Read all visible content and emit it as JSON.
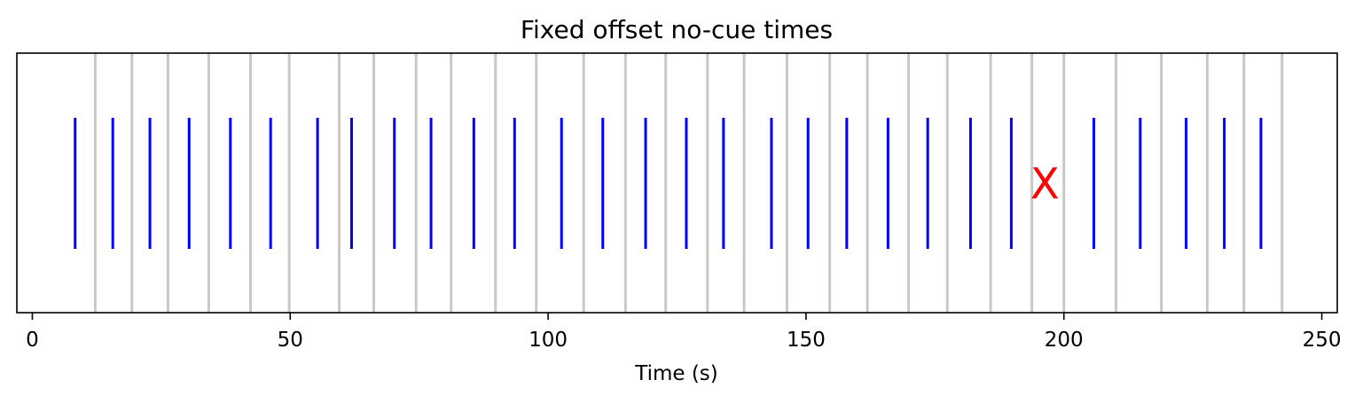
{
  "chart_data": {
    "type": "event-raster",
    "title": "Fixed offset no-cue times",
    "xlabel": "Time (s)",
    "ylabel": "",
    "xlim": [
      -3,
      253
    ],
    "y_axis_visible": false,
    "xticks": [
      0,
      50,
      100,
      150,
      200,
      250
    ],
    "tick_labels": [
      "0",
      "50",
      "100",
      "150",
      "200",
      "250"
    ],
    "colors": {
      "event_line": "#0000ff",
      "reference_line": "#c8c8c8",
      "marker": "#ff0000"
    },
    "series": [
      {
        "role": "reference",
        "x": [
          12.2,
          19.3,
          26.3,
          34.2,
          42.3,
          49.8,
          59.5,
          66.2,
          74.4,
          81.2,
          89.8,
          97.7,
          106.9,
          115.0,
          122.8,
          130.9,
          138.0,
          146.3,
          154.6,
          161.9,
          169.9,
          177.4,
          185.8,
          193.8,
          200.0,
          210.1,
          218.9,
          227.8,
          234.9,
          242.3
        ]
      },
      {
        "role": "event",
        "x": [
          8.3,
          15.6,
          22.8,
          30.4,
          38.4,
          46.2,
          55.3,
          61.9,
          70.2,
          77.3,
          85.6,
          93.5,
          102.6,
          110.6,
          118.9,
          126.8,
          134.0,
          143.3,
          150.4,
          157.9,
          165.9,
          173.6,
          181.9,
          189.8,
          205.8,
          214.8,
          223.7,
          231.1,
          238.2
        ]
      }
    ],
    "annotations": [
      {
        "text": "X",
        "x": 196.3
      }
    ]
  }
}
